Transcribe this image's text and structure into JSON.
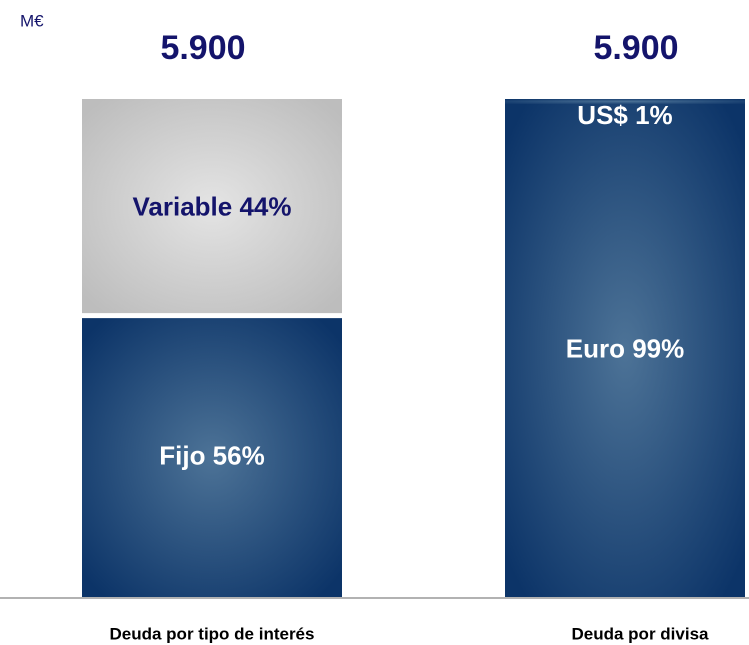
{
  "chart_data": {
    "type": "stacked_bar",
    "unit": "M€",
    "categories": [
      "Deuda por tipo de interés",
      "Deuda por divisa"
    ],
    "totals": [
      5900,
      5900
    ],
    "total_labels": [
      "5.900",
      "5.900"
    ],
    "bars": [
      {
        "segments": [
          {
            "value": 56,
            "label": "Fijo 56%",
            "color": "dark",
            "text_color": "#ffffff"
          },
          {
            "value": 44,
            "label": "Variable 44%",
            "color": "grey",
            "text_color": "#14146b"
          }
        ]
      },
      {
        "segments": [
          {
            "value": 99,
            "label": "Euro 99%",
            "color": "dark",
            "text_color": "#ffffff"
          },
          {
            "value": 1,
            "label": "US$ 1%",
            "color": "dark",
            "text_color": "#ffffff"
          }
        ]
      }
    ]
  }
}
